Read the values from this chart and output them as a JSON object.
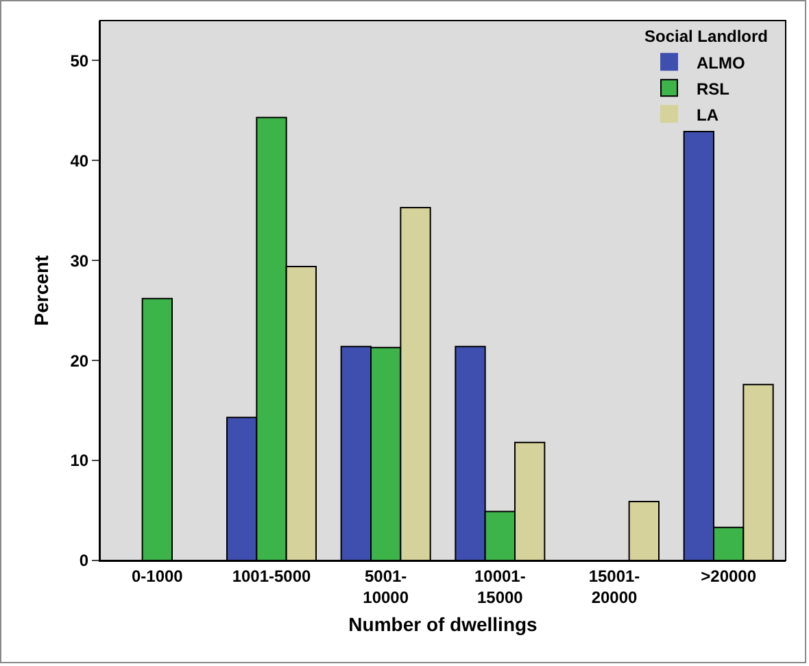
{
  "chart_data": {
    "type": "bar",
    "xlabel": "Number of dwellings",
    "ylabel": "Percent",
    "legend_title": "Social Landlord",
    "legend": "top right",
    "categories": [
      "0-1000",
      "1001-5000",
      "5001-10000",
      "10001-15000",
      "15001-20000",
      ">20000"
    ],
    "series": [
      {
        "name": "ALMO",
        "color": "#3f4fb0",
        "values": [
          0,
          14.3,
          21.4,
          21.4,
          0,
          42.9
        ]
      },
      {
        "name": "RSL",
        "color": "#3cb44a",
        "values": [
          26.2,
          44.3,
          21.3,
          4.9,
          0,
          3.3
        ]
      },
      {
        "name": "LA",
        "color": "#d6d29c",
        "values": [
          0,
          29.4,
          35.3,
          11.8,
          5.9,
          17.6
        ]
      }
    ],
    "ylim": [
      0,
      54
    ],
    "yticks": [
      0,
      10,
      20,
      30,
      40,
      50
    ],
    "grid": false
  }
}
